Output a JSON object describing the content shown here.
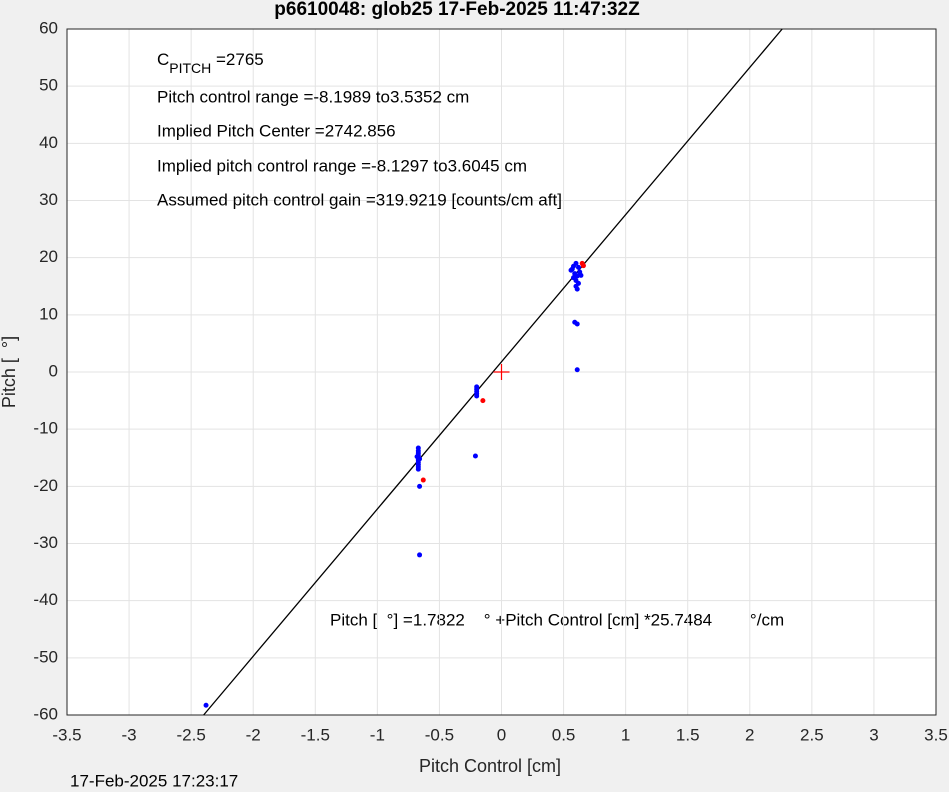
{
  "chart_data": {
    "type": "scatter",
    "title": "p6610048: glob25 17-Feb-2025 11:47:32Z",
    "x_label": "Pitch Control [cm]",
    "y_label": "Pitch [  °]",
    "timestamp": "17-Feb-2025 17:23:17",
    "annotations": [
      {
        "main": "C",
        "sub": "PITCH",
        "rest": " =2765"
      },
      "Pitch control range =-8.1989 to3.5352 cm",
      "Implied Pitch Center =2742.856",
      "Implied pitch control range =-8.1297 to3.6045 cm",
      "Assumed pitch control gain =319.9219 [counts/cm aft]"
    ],
    "equation": "Pitch [  °] =1.7822    ° +Pitch Control [cm] *25.7484        °/cm",
    "xlim": [
      -3.5,
      3.5
    ],
    "xticks": [
      -3.5,
      -3,
      -2.5,
      -2,
      -1.5,
      -1,
      -0.5,
      0,
      0.5,
      1,
      1.5,
      2,
      2.5,
      3,
      3.5
    ],
    "ylim": [
      -60,
      60
    ],
    "yticks": [
      -60,
      -50,
      -40,
      -30,
      -20,
      -10,
      0,
      10,
      20,
      30,
      40,
      50,
      60
    ],
    "grid": true,
    "series": [
      {
        "marker": "line",
        "color": "#000000",
        "x": [
          -2.3994,
          2.261
        ],
        "values": [
          -60,
          60
        ]
      },
      {
        "marker": "dot",
        "color": "#0000ff",
        "x": [
          -2.38,
          -0.67,
          -0.67,
          -0.67,
          -0.67,
          -0.67,
          -0.67,
          -0.67,
          -0.67,
          -0.67,
          -0.67,
          -0.66,
          -0.68,
          -0.66,
          -0.66,
          -0.2,
          -0.2,
          -0.2,
          -0.2,
          -0.2,
          -0.21,
          0.56,
          0.58,
          0.6,
          0.62,
          0.59,
          0.61,
          0.63,
          0.6,
          0.62,
          0.6,
          0.61,
          0.58,
          0.64,
          0.57,
          0.59,
          0.61,
          0.61
        ],
        "values": [
          -58.3,
          -13.3,
          -13.8,
          -14.2,
          -14.6,
          -15,
          -15.4,
          -15.8,
          -16.2,
          -16.6,
          -17,
          -15.2,
          -14.8,
          -20,
          -32,
          -2.6,
          -3,
          -3.4,
          -3.8,
          -4.2,
          -14.7,
          17.8,
          18.5,
          19,
          18.3,
          17.2,
          16.8,
          17.5,
          16,
          15.5,
          15,
          14.5,
          16.5,
          16.9,
          18,
          8.7,
          8.4,
          0.4
        ]
      },
      {
        "marker": "dot",
        "color": "#ff0000",
        "x": [
          -0.63,
          -0.15,
          0.65,
          0.66
        ],
        "values": [
          -18.9,
          -5,
          19,
          18.6
        ]
      },
      {
        "marker": "plus",
        "color": "#ff0000",
        "x": [
          0
        ],
        "values": [
          0
        ]
      }
    ]
  }
}
